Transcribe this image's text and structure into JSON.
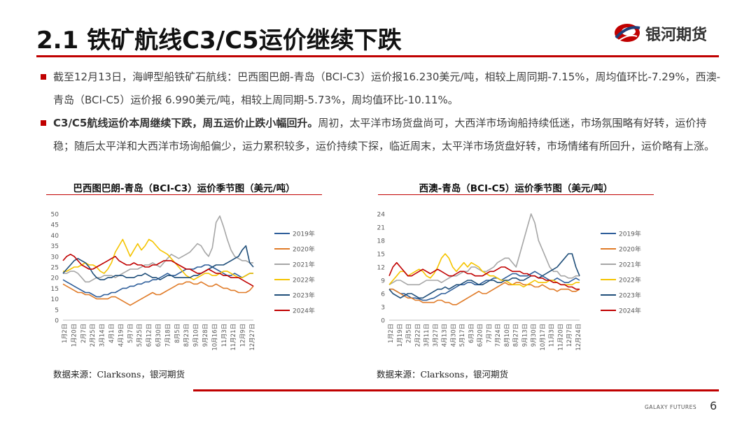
{
  "header": {
    "title": "2.1 铁矿航线C3/C5运价继续下跌",
    "logo_text": "银河期货"
  },
  "bullets": [
    {
      "bold": "",
      "text": "截至12月13日，海岬型船铁矿石航线：巴西图巴朗-青岛（BCI-C3）运价报16.230美元/吨，相较上周同期-7.15%，周均值环比-7.29%，西澳-青岛（BCI-C5）运价报 6.990美元/吨，相较上周同期-5.73%，周均值环比-10.11%。"
    },
    {
      "bold": "C3/C5航线运价本周继续下跌，周五运价止跌小幅回升。",
      "text": "周初，太平洋市场货盘尚可，大西洋市场询船持续低迷，市场氛围略有好转，运价持稳；随后太平洋和大西洋市场询船偏少，运力累积较多，运价持续下探，临近周末，太平洋市场货盘好转，市场情绪有所回升，运价略有上涨。"
    }
  ],
  "charts_meta": [
    {
      "source": "数据来源：Clarksons，银河期货"
    },
    {
      "source": "数据来源：Clarksons，银河期货"
    }
  ],
  "colors": {
    "2019年": "#2e5e9a",
    "2020年": "#e07b28",
    "2021年": "#a6a6a6",
    "2022年": "#f5c400",
    "2023年": "#1f4e79",
    "2024年": "#c00000",
    "accent": "#c00000"
  },
  "chart_data": [
    {
      "type": "line",
      "title": "巴西图巴朗-青岛（BCI-C3）运价季节图（美元/吨）",
      "ylim": [
        0,
        50
      ],
      "yticks": [
        0,
        5,
        10,
        15,
        20,
        25,
        30,
        35,
        40,
        45,
        50
      ],
      "x_tick_labels": [
        "1月2日",
        "1月20日",
        "2月7日",
        "2月25日",
        "3月14日",
        "4月1日",
        "4月19日",
        "5月7日",
        "5月25日",
        "6月12日",
        "6月30日",
        "7月18日",
        "8月5日",
        "8月23日",
        "9月10日",
        "9月28日",
        "10月16日",
        "11月3日",
        "11月21日",
        "12月9日",
        "12月27日"
      ],
      "legend_position": "right",
      "series": [
        {
          "name": "2019年",
          "values": [
            19,
            18,
            17,
            16,
            15,
            14,
            13,
            13,
            12,
            11,
            11,
            12,
            12,
            13,
            13,
            14,
            15,
            15,
            16,
            16,
            17,
            17,
            18,
            18,
            19,
            19,
            20,
            21,
            22,
            21,
            21,
            22,
            23,
            24,
            24,
            24,
            25,
            25,
            26,
            26,
            25,
            24,
            23,
            22,
            21,
            21,
            22,
            21,
            20,
            21,
            22,
            22
          ]
        },
        {
          "name": "2020年",
          "values": [
            17,
            16,
            15,
            14,
            13,
            13,
            12,
            12,
            11,
            10,
            10,
            10,
            10,
            11,
            11,
            10,
            9,
            8,
            7,
            8,
            9,
            10,
            11,
            12,
            13,
            12,
            12,
            13,
            14,
            15,
            16,
            17,
            17,
            18,
            18,
            17,
            17,
            18,
            17,
            16,
            16,
            17,
            16,
            15,
            15,
            14,
            14,
            13,
            13,
            13,
            14,
            16
          ]
        },
        {
          "name": "2021年",
          "values": [
            22,
            22,
            23,
            23,
            22,
            20,
            18,
            18,
            19,
            20,
            20,
            21,
            21,
            21,
            20,
            21,
            22,
            23,
            24,
            24,
            24,
            25,
            26,
            26,
            27,
            26,
            25,
            27,
            29,
            31,
            30,
            29,
            30,
            31,
            32,
            34,
            36,
            35,
            32,
            30,
            34,
            46,
            49,
            44,
            38,
            33,
            30,
            29,
            28,
            28,
            27,
            27
          ]
        },
        {
          "name": "2022年",
          "values": [
            23,
            23,
            24,
            25,
            25,
            26,
            27,
            26,
            26,
            25,
            23,
            22,
            24,
            27,
            32,
            35,
            38,
            34,
            30,
            33,
            36,
            33,
            35,
            38,
            37,
            35,
            33,
            32,
            31,
            29,
            27,
            25,
            23,
            21,
            20,
            19,
            20,
            21,
            22,
            22,
            21,
            21,
            22,
            23,
            23,
            22,
            21,
            20,
            20,
            21,
            22,
            22
          ]
        },
        {
          "name": "2023年",
          "values": [
            22,
            24,
            26,
            28,
            29,
            28,
            27,
            25,
            22,
            20,
            19,
            19,
            20,
            20,
            21,
            21,
            21,
            20,
            20,
            20,
            21,
            21,
            22,
            21,
            20,
            20,
            19,
            20,
            21,
            21,
            20,
            20,
            20,
            20,
            20,
            21,
            21,
            22,
            23,
            24,
            25,
            26,
            26,
            26,
            27,
            28,
            29,
            30,
            33,
            35,
            27,
            25
          ]
        },
        {
          "name": "2024年",
          "values": [
            28,
            30,
            31,
            30,
            28,
            26,
            25,
            24,
            24,
            25,
            26,
            27,
            28,
            29,
            30,
            28,
            27,
            26,
            26,
            27,
            26,
            26,
            25,
            25,
            26,
            26,
            27,
            28,
            28,
            28,
            27,
            26,
            25,
            24,
            24,
            23,
            22,
            22,
            23,
            24,
            23,
            22,
            22,
            21,
            21,
            20,
            20,
            20,
            19,
            18,
            17,
            16
          ]
        }
      ]
    },
    {
      "type": "line",
      "title": "西澳-青岛（BCI-C5）运价季节图（美元/吨）",
      "ylim": [
        0,
        24
      ],
      "yticks": [
        0,
        3,
        6,
        9,
        12,
        15,
        18,
        21,
        24
      ],
      "x_tick_labels": [
        "1月2日",
        "1月19日",
        "2月5日",
        "2月22日",
        "3月11日",
        "3月27日",
        "4月13日",
        "4月30日",
        "5月17日",
        "6月3日",
        "6月20日",
        "7月7日",
        "7月24日",
        "8月10日",
        "8月27日",
        "9月13日",
        "9月30日",
        "10月17日",
        "11月3日",
        "11月20日",
        "12月7日",
        "12月24日"
      ],
      "legend_position": "right",
      "series": [
        {
          "name": "2019年",
          "values": [
            7,
            7,
            6.5,
            6,
            6,
            5.5,
            5,
            5,
            4.8,
            4.5,
            4.5,
            4.8,
            5,
            5.5,
            6,
            6,
            6.5,
            7,
            7.5,
            8,
            8,
            8.5,
            8.5,
            8,
            8,
            8.5,
            9,
            9,
            9.5,
            9.5,
            9,
            9.5,
            10,
            10.5,
            10.5,
            10,
            10,
            10,
            10.5,
            11,
            10.5,
            10,
            9.5,
            9,
            9,
            9.5,
            9,
            8.5,
            8.5,
            9,
            9.5,
            9
          ]
        },
        {
          "name": "2020年",
          "values": [
            7,
            7,
            6.5,
            6,
            5.5,
            5,
            5,
            4.5,
            4.5,
            4,
            4,
            4,
            4,
            4.5,
            4.5,
            4,
            4,
            3.5,
            3.5,
            4,
            4.5,
            5,
            5.5,
            6,
            6.5,
            6,
            6,
            6.5,
            7,
            7.5,
            8,
            8.5,
            8,
            8,
            8.5,
            8.5,
            8,
            8,
            8,
            7.5,
            7.5,
            8,
            7.5,
            7,
            7,
            6.5,
            7,
            7,
            7,
            6.5,
            6.5,
            7
          ]
        },
        {
          "name": "2021年",
          "values": [
            8,
            8.5,
            9,
            9,
            8.5,
            8,
            8,
            8,
            8,
            8.5,
            9,
            9,
            9,
            9,
            8.5,
            9,
            9.5,
            10,
            10,
            10.5,
            11,
            11,
            12,
            12,
            11.5,
            11,
            11,
            11.5,
            12,
            13,
            13.5,
            14,
            14,
            13,
            12,
            15,
            18,
            21,
            24,
            22,
            18,
            16,
            14,
            12,
            11,
            11,
            10,
            10,
            9.5,
            9.5,
            10,
            10
          ]
        },
        {
          "name": "2022年",
          "values": [
            8,
            9,
            10,
            11,
            11,
            10,
            10.5,
            11,
            11.5,
            11,
            10,
            9.5,
            10.5,
            12,
            14,
            15,
            14,
            12,
            11,
            12,
            13,
            12,
            13,
            12.5,
            12,
            11,
            10.5,
            10,
            10,
            9.5,
            9,
            9,
            8.5,
            8,
            8,
            8,
            7.5,
            8,
            8.5,
            9,
            8.5,
            8.5,
            8.5,
            9,
            9,
            8.5,
            8,
            8,
            8,
            8,
            8.5,
            8.5
          ]
        },
        {
          "name": "2023年",
          "values": [
            7,
            6,
            5.5,
            5,
            5.5,
            6,
            6,
            5.5,
            5,
            5,
            5.5,
            6,
            6.5,
            7,
            7,
            7.5,
            7,
            7.5,
            8,
            8,
            8.5,
            9,
            9,
            8.5,
            8,
            8,
            8.5,
            9,
            9,
            8.5,
            8.5,
            9,
            9,
            9.5,
            9.5,
            9,
            9,
            9.5,
            10,
            10,
            9.5,
            10,
            10.5,
            11,
            11.5,
            12,
            13,
            14,
            15,
            15,
            12,
            10
          ]
        },
        {
          "name": "2024年",
          "values": [
            10,
            12,
            13,
            12,
            11,
            10,
            10,
            10.5,
            11,
            11.5,
            11,
            10.5,
            11,
            11.5,
            11,
            10.5,
            10,
            10,
            10.5,
            11,
            11,
            10.5,
            10.5,
            10,
            10,
            10,
            10.5,
            11,
            11,
            11.5,
            12,
            12,
            11.5,
            11,
            11,
            11,
            10.5,
            10.5,
            10,
            10,
            9.5,
            9.5,
            9,
            9,
            8.5,
            8.5,
            8,
            8,
            7.5,
            7.5,
            7,
            7
          ]
        }
      ]
    }
  ],
  "footer": {
    "company": "GALAXY FUTURES",
    "page": "6"
  }
}
